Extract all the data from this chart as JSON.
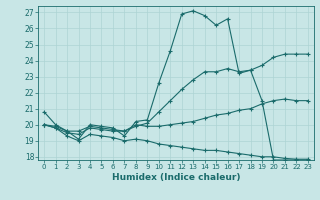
{
  "xlabel": "Humidex (Indice chaleur)",
  "bg_color": "#c8e6e6",
  "grid_color": "#add4d4",
  "line_color": "#1a6b6b",
  "xlim": [
    -0.5,
    23.5
  ],
  "ylim": [
    17.8,
    27.4
  ],
  "xticks": [
    0,
    1,
    2,
    3,
    4,
    5,
    6,
    7,
    8,
    9,
    10,
    11,
    12,
    13,
    14,
    15,
    16,
    17,
    18,
    19,
    20,
    21,
    22,
    23
  ],
  "yticks": [
    18,
    19,
    20,
    21,
    22,
    23,
    24,
    25,
    26,
    27
  ],
  "line1_x": [
    0,
    1,
    2,
    3,
    4,
    5,
    6,
    7,
    8,
    9,
    10,
    11,
    12,
    13,
    14,
    15,
    16,
    17,
    18,
    19,
    20,
    21,
    22,
    23
  ],
  "line1_y": [
    20.8,
    20.0,
    19.6,
    19.1,
    20.0,
    19.9,
    19.8,
    19.3,
    20.2,
    20.3,
    22.6,
    24.6,
    26.9,
    27.1,
    26.8,
    26.2,
    26.6,
    23.2,
    23.4,
    21.5,
    17.8,
    17.8,
    17.8,
    17.8
  ],
  "line2_x": [
    0,
    1,
    2,
    3,
    4,
    5,
    6,
    7,
    8,
    9,
    10,
    11,
    12,
    13,
    14,
    15,
    16,
    17,
    18,
    19,
    20,
    21,
    22,
    23
  ],
  "line2_y": [
    20.0,
    19.9,
    19.6,
    19.6,
    19.9,
    19.8,
    19.7,
    19.6,
    19.9,
    20.1,
    20.8,
    21.5,
    22.2,
    22.8,
    23.3,
    23.3,
    23.5,
    23.3,
    23.4,
    23.7,
    24.2,
    24.4,
    24.4,
    24.4
  ],
  "line3_x": [
    0,
    1,
    2,
    3,
    4,
    5,
    6,
    7,
    8,
    9,
    10,
    11,
    12,
    13,
    14,
    15,
    16,
    17,
    18,
    19,
    20,
    21,
    22,
    23
  ],
  "line3_y": [
    20.0,
    19.8,
    19.5,
    19.4,
    19.8,
    19.7,
    19.6,
    19.6,
    20.0,
    19.9,
    19.9,
    20.0,
    20.1,
    20.2,
    20.4,
    20.6,
    20.7,
    20.9,
    21.0,
    21.3,
    21.5,
    21.6,
    21.5,
    21.5
  ],
  "line4_x": [
    0,
    1,
    2,
    3,
    4,
    5,
    6,
    7,
    8,
    9,
    10,
    11,
    12,
    13,
    14,
    15,
    16,
    17,
    18,
    19,
    20,
    21,
    22,
    23
  ],
  "line4_y": [
    20.0,
    19.8,
    19.3,
    19.0,
    19.4,
    19.3,
    19.2,
    19.0,
    19.1,
    19.0,
    18.8,
    18.7,
    18.6,
    18.5,
    18.4,
    18.4,
    18.3,
    18.2,
    18.1,
    18.0,
    18.0,
    17.9,
    17.85,
    17.85
  ]
}
